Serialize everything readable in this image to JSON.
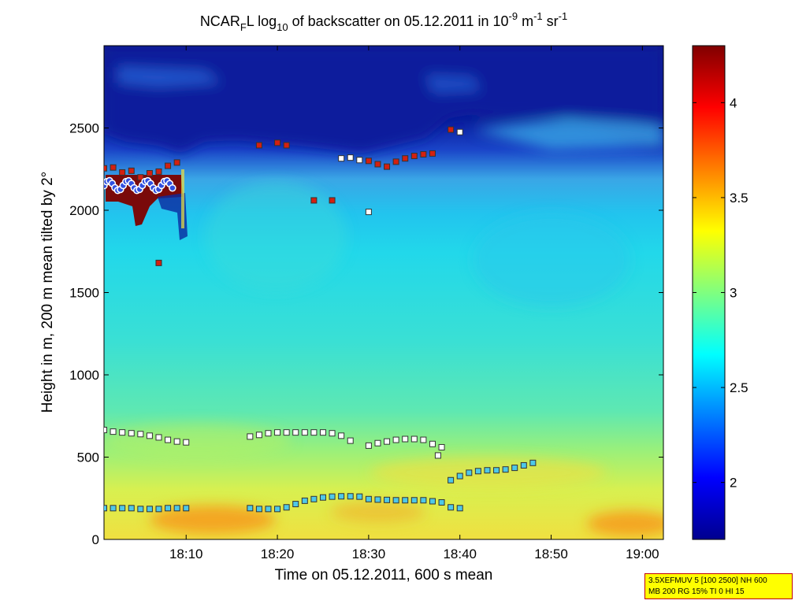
{
  "chart_data": {
    "type": "heatmap",
    "title": "NCAR_F L log_10 of backscatter on 05.12.2011 in 10^-9 m^-1 sr^-1",
    "title_parts": {
      "a": "NCAR",
      "b": "F",
      "c": "L log",
      "d": "10",
      "e": " of backscatter on 05.12.2011 in 10",
      "f": "-9",
      "g": " m",
      "h": "-1",
      "i": " sr",
      "j": "-1"
    },
    "xlabel": "Time on 05.12.2011, 600 s mean",
    "ylabel": "Height in m, 200 m mean tilted by 2°",
    "xlim_minutes": [
      1081,
      1142.3
    ],
    "ylim": [
      0,
      3000
    ],
    "x_ticks": [
      {
        "label": "18:10",
        "value": 1090
      },
      {
        "label": "18:20",
        "value": 1100
      },
      {
        "label": "18:30",
        "value": 1110
      },
      {
        "label": "18:40",
        "value": 1120
      },
      {
        "label": "18:50",
        "value": 1130
      },
      {
        "label": "19:00",
        "value": 1140
      }
    ],
    "y_ticks": [
      {
        "label": "0",
        "value": 0
      },
      {
        "label": "500",
        "value": 500
      },
      {
        "label": "1000",
        "value": 1000
      },
      {
        "label": "1500",
        "value": 1500
      },
      {
        "label": "2000",
        "value": 2000
      },
      {
        "label": "2500",
        "value": 2500
      }
    ],
    "colorbar": {
      "clim": [
        1.7,
        4.3
      ],
      "ticks": [
        {
          "label": "2",
          "value": 2
        },
        {
          "label": "2.5",
          "value": 2.5
        },
        {
          "label": "3",
          "value": 3
        },
        {
          "label": "3.5",
          "value": 3.5
        },
        {
          "label": "4",
          "value": 4
        }
      ],
      "colormap": "jet"
    },
    "layers": [
      {
        "name": "aerosol layer 1",
        "color": "#4ec8e8",
        "points": [
          [
            1081,
            190
          ],
          [
            1082,
            190
          ],
          [
            1083,
            190
          ],
          [
            1084,
            190
          ],
          [
            1085,
            185
          ],
          [
            1086,
            185
          ],
          [
            1087,
            185
          ],
          [
            1088,
            190
          ],
          [
            1089,
            190
          ],
          [
            1090,
            190
          ],
          [
            1097,
            190
          ],
          [
            1098,
            185
          ],
          [
            1099,
            185
          ],
          [
            1100,
            185
          ],
          [
            1101,
            195
          ],
          [
            1102,
            215
          ],
          [
            1103,
            235
          ],
          [
            1104,
            245
          ],
          [
            1105,
            255
          ],
          [
            1106,
            260
          ],
          [
            1107,
            262
          ],
          [
            1108,
            262
          ],
          [
            1109,
            260
          ],
          [
            1110,
            245
          ],
          [
            1111,
            242
          ],
          [
            1112,
            240
          ],
          [
            1113,
            238
          ],
          [
            1114,
            238
          ],
          [
            1115,
            238
          ],
          [
            1116,
            238
          ],
          [
            1117,
            232
          ],
          [
            1118,
            225
          ],
          [
            1119,
            195
          ],
          [
            1120,
            190
          ]
        ]
      },
      {
        "name": "aerosol layer 2",
        "color": "#ffffff",
        "points": [
          [
            1081,
            665
          ],
          [
            1082,
            655
          ],
          [
            1083,
            650
          ],
          [
            1084,
            645
          ],
          [
            1085,
            640
          ],
          [
            1086,
            630
          ],
          [
            1087,
            620
          ],
          [
            1088,
            605
          ],
          [
            1089,
            595
          ],
          [
            1090,
            590
          ],
          [
            1097,
            625
          ],
          [
            1098,
            635
          ],
          [
            1099,
            645
          ],
          [
            1100,
            650
          ],
          [
            1101,
            650
          ],
          [
            1102,
            650
          ],
          [
            1103,
            650
          ],
          [
            1104,
            650
          ],
          [
            1105,
            650
          ],
          [
            1106,
            645
          ],
          [
            1107,
            630
          ],
          [
            1108,
            600
          ],
          [
            1110,
            570
          ],
          [
            1111,
            585
          ],
          [
            1112,
            595
          ],
          [
            1113,
            605
          ],
          [
            1114,
            610
          ],
          [
            1115,
            610
          ],
          [
            1116,
            605
          ],
          [
            1117,
            580
          ],
          [
            1118,
            560
          ],
          [
            1117.6,
            510
          ]
        ]
      },
      {
        "name": "aerosol layer 3",
        "color": "#4ec8e8",
        "points": [
          [
            1119,
            360
          ],
          [
            1120,
            385
          ],
          [
            1121,
            405
          ],
          [
            1122,
            415
          ],
          [
            1123,
            420
          ],
          [
            1124,
            420
          ],
          [
            1125,
            425
          ],
          [
            1126,
            435
          ],
          [
            1127,
            450
          ],
          [
            1128,
            465
          ]
        ]
      },
      {
        "name": "cloud base",
        "color": "#d42010",
        "points": [
          [
            1081,
            2255
          ],
          [
            1082,
            2260
          ],
          [
            1083,
            2230
          ],
          [
            1084,
            2240
          ],
          [
            1085,
            2200
          ],
          [
            1086,
            2225
          ],
          [
            1087,
            2235
          ],
          [
            1088,
            2270
          ],
          [
            1089,
            2290
          ],
          [
            1098,
            2395
          ],
          [
            1100,
            2410
          ],
          [
            1101,
            2395
          ],
          [
            1104,
            2060
          ],
          [
            1106,
            2060
          ],
          [
            1110,
            2300
          ],
          [
            1111,
            2280
          ],
          [
            1112,
            2265
          ],
          [
            1113,
            2295
          ],
          [
            1114,
            2315
          ],
          [
            1115,
            2330
          ],
          [
            1116,
            2340
          ],
          [
            1117,
            2345
          ],
          [
            1119,
            2490
          ],
          [
            1087,
            1680
          ]
        ]
      },
      {
        "name": "upper layer",
        "color": "#ffffff",
        "points": [
          [
            1107,
            2315
          ],
          [
            1108,
            2320
          ],
          [
            1109,
            2305
          ],
          [
            1110,
            1990
          ],
          [
            1120,
            2475
          ]
        ]
      }
    ]
  },
  "info_box": {
    "line1": "3.5XEFMUV 5 [100 2500] NH 600",
    "line2": "MB 200 RG 15% TI 0 HI 15"
  }
}
